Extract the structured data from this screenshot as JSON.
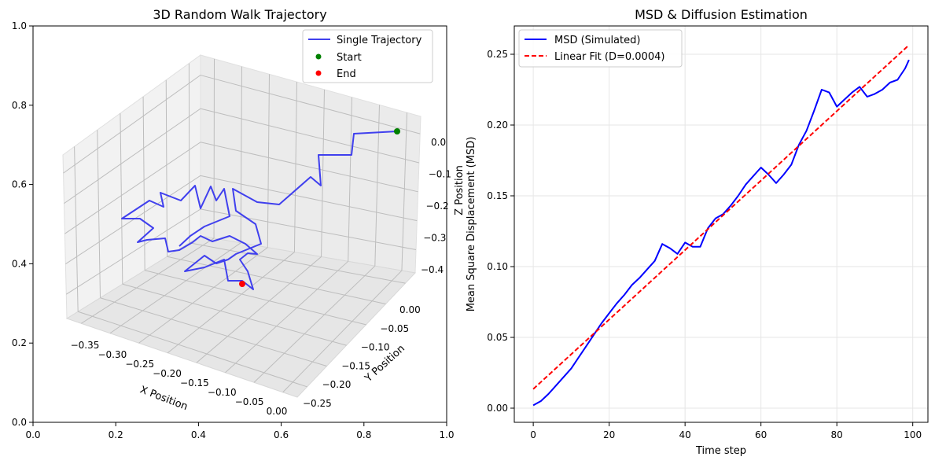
{
  "chart_data": [
    {
      "type": "line3d",
      "title": "3D Random Walk Trajectory",
      "outer_axes": {
        "xlim": [
          0,
          1
        ],
        "ylim": [
          0,
          1
        ],
        "xticks": [
          "0.0",
          "0.2",
          "0.4",
          "0.6",
          "0.8",
          "1.0"
        ],
        "yticks": [
          "0.0",
          "0.2",
          "0.4",
          "0.6",
          "0.8",
          "1.0"
        ]
      },
      "xlabel": "X Position",
      "ylabel": "Y Position",
      "zlabel": "Z Position",
      "xticks": [
        "−0.35",
        "−0.30",
        "−0.25",
        "−0.20",
        "−0.15",
        "−0.10",
        "−0.05",
        "0.00"
      ],
      "yticks": [
        "0.00",
        "−0.05",
        "−0.10",
        "−0.15",
        "−0.20",
        "−0.25"
      ],
      "zticks": [
        "0.0",
        "−0.1",
        "−0.2",
        "−0.3",
        "−0.4"
      ],
      "legend_position": "upper right",
      "series": [
        {
          "name": "Single Trajectory",
          "color": "#4040ee",
          "style": "solid"
        },
        {
          "name": "Start",
          "color": "#008000",
          "style": "marker"
        },
        {
          "name": "End",
          "color": "#ff0000",
          "style": "marker"
        }
      ],
      "grid": true
    },
    {
      "type": "line",
      "title": "MSD & Diffusion Estimation",
      "xlabel": "Time step",
      "ylabel": "Mean Square Displacement (MSD)",
      "xlim": [
        -5,
        104
      ],
      "ylim": [
        -0.01,
        0.27
      ],
      "xticks": [
        0,
        20,
        40,
        60,
        80,
        100
      ],
      "yticks": [
        0.0,
        0.05,
        0.1,
        0.15,
        0.2,
        0.25
      ],
      "ytick_labels": [
        "0.00",
        "0.05",
        "0.10",
        "0.15",
        "0.20",
        "0.25"
      ],
      "grid": true,
      "legend_position": "upper left",
      "series": [
        {
          "name": "MSD (Simulated)",
          "color": "#0000ff",
          "style": "solid",
          "x": [
            0,
            2,
            4,
            6,
            8,
            10,
            12,
            14,
            16,
            18,
            20,
            22,
            24,
            26,
            28,
            30,
            32,
            34,
            36,
            38,
            40,
            42,
            44,
            46,
            48,
            50,
            52,
            54,
            56,
            58,
            60,
            62,
            64,
            66,
            68,
            70,
            72,
            74,
            76,
            78,
            80,
            82,
            84,
            86,
            88,
            90,
            92,
            94,
            96,
            98,
            99
          ],
          "y": [
            0.002,
            0.005,
            0.01,
            0.016,
            0.022,
            0.028,
            0.036,
            0.044,
            0.052,
            0.06,
            0.067,
            0.074,
            0.08,
            0.087,
            0.092,
            0.098,
            0.104,
            0.116,
            0.113,
            0.109,
            0.117,
            0.114,
            0.114,
            0.127,
            0.134,
            0.137,
            0.143,
            0.15,
            0.158,
            0.164,
            0.17,
            0.165,
            0.159,
            0.165,
            0.172,
            0.186,
            0.196,
            0.21,
            0.225,
            0.223,
            0.213,
            0.218,
            0.223,
            0.227,
            0.22,
            0.222,
            0.225,
            0.23,
            0.232,
            0.24,
            0.246
          ]
        },
        {
          "name": "Linear Fit (D=0.0004)",
          "color": "#ff0000",
          "style": "dashed",
          "x": [
            0,
            99
          ],
          "y": [
            0.0135,
            0.2565
          ]
        }
      ]
    }
  ]
}
